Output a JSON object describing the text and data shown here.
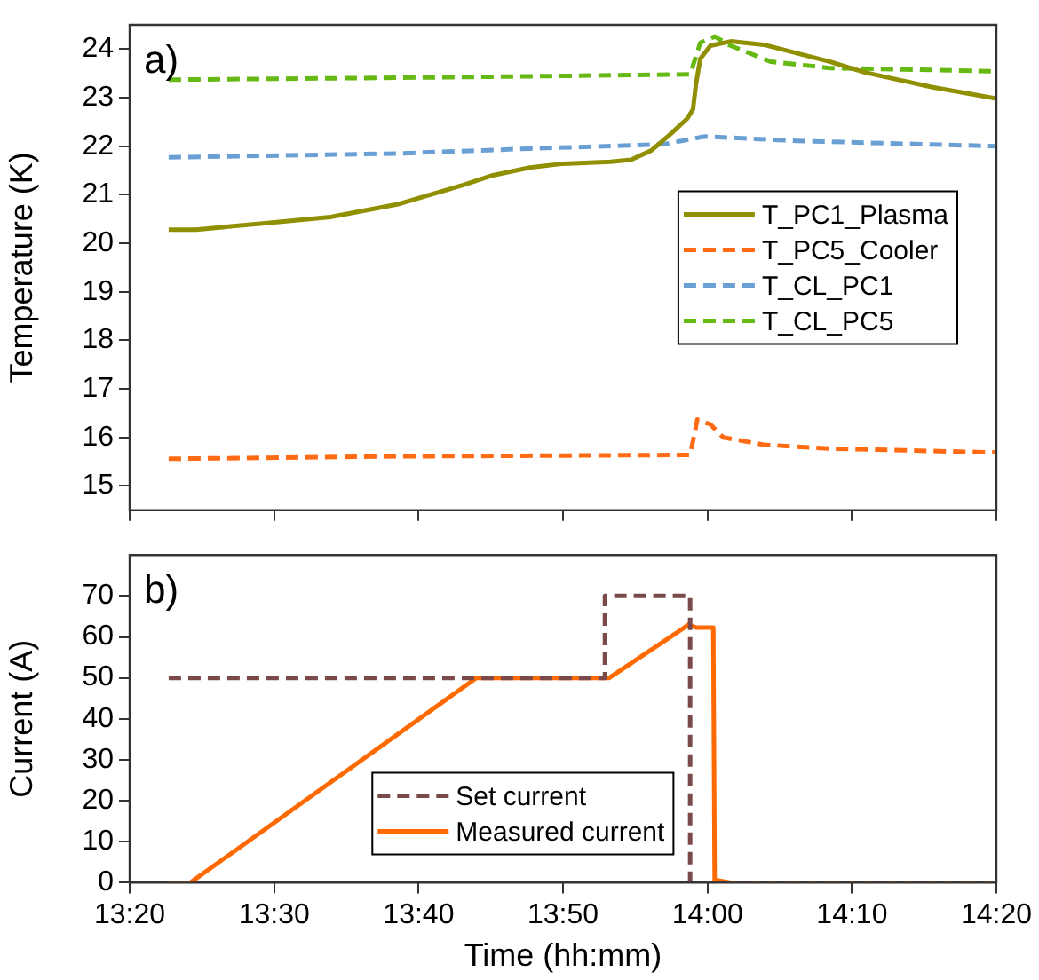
{
  "chart_data": [
    {
      "type": "line",
      "ylabel": "Temperature (K)",
      "annotations": [
        "a)"
      ],
      "legend": "right",
      "grid": false,
      "marker": "none",
      "tick_labels": "y",
      "xlim": [
        13.3333,
        14.3333
      ],
      "xticks": [
        {
          "value": 13.3333,
          "label": null
        },
        {
          "value": 13.5,
          "label": null
        },
        {
          "value": 13.6667,
          "label": null
        },
        {
          "value": 13.8333,
          "label": null
        },
        {
          "value": 14,
          "label": null
        },
        {
          "value": 14.1667,
          "label": null
        },
        {
          "value": 14.3333,
          "label": null
        }
      ],
      "ylim": [
        14.5,
        24.5
      ],
      "yticks": [
        15,
        16,
        17,
        18,
        19,
        20,
        21,
        22,
        23,
        24
      ],
      "series": [
        {
          "name": "T_PC1_Plasma",
          "color": "#8f8f00",
          "line_style": "solid",
          "x": [
            13.3783,
            13.41,
            13.4867,
            13.565,
            13.6417,
            13.7183,
            13.75,
            13.795,
            13.8333,
            13.8883,
            13.9117,
            13.935,
            13.9567,
            13.9767,
            13.9833,
            13.9867,
            13.9917,
            14.0033,
            14.0267,
            14.065,
            14.1417,
            14.1817,
            14.2583,
            14.3333
          ],
          "values": [
            20.28,
            20.28,
            20.41,
            20.54,
            20.8,
            21.2,
            21.39,
            21.56,
            21.64,
            21.68,
            21.72,
            21.91,
            22.24,
            22.57,
            22.76,
            23.28,
            23.8,
            24.07,
            24.16,
            24.09,
            23.74,
            23.52,
            23.22,
            22.98
          ]
        },
        {
          "name": "T_PC5_Cooler",
          "color": "#ff6a13",
          "line_style": "dashed",
          "x": [
            13.3783,
            13.6417,
            13.98,
            13.9883,
            14.0033,
            14.0183,
            14.065,
            14.1417,
            14.3333
          ],
          "values": [
            15.56,
            15.61,
            15.64,
            16.37,
            16.27,
            16.0,
            15.85,
            15.77,
            15.69
          ]
        },
        {
          "name": "T_CL_PC1",
          "color": "#6a9fd4",
          "line_style": "dashed",
          "x": [
            13.3783,
            13.6417,
            13.795,
            13.95,
            13.9967,
            14.1033,
            14.3333
          ],
          "values": [
            21.77,
            21.85,
            21.95,
            22.04,
            22.2,
            22.11,
            22.0
          ]
        },
        {
          "name": "T_CL_PC5",
          "color": "#66b812",
          "line_style": "dashed",
          "x": [
            13.3783,
            13.6417,
            13.795,
            13.98,
            13.9917,
            14.0083,
            14.0267,
            14.0733,
            14.1417,
            14.2583,
            14.3333
          ],
          "values": [
            23.37,
            23.41,
            23.44,
            23.48,
            24.13,
            24.26,
            24.07,
            23.74,
            23.61,
            23.57,
            23.54
          ]
        }
      ]
    },
    {
      "type": "line",
      "xlabel": "Time (hh:mm)",
      "ylabel": "Current (A)",
      "annotations": [
        "b)"
      ],
      "legend": "bottom",
      "grid": false,
      "marker": "none",
      "xlim": [
        13.3333,
        14.3333
      ],
      "xticks": [
        {
          "value": 13.3333,
          "label": "13:20"
        },
        {
          "value": 13.5,
          "label": "13:30"
        },
        {
          "value": 13.6667,
          "label": "13:40"
        },
        {
          "value": 13.8333,
          "label": "13:50"
        },
        {
          "value": 14,
          "label": "14:00"
        },
        {
          "value": 14.1667,
          "label": "14:10"
        },
        {
          "value": 14.3333,
          "label": "14:20"
        }
      ],
      "ylim": [
        0,
        80
      ],
      "yticks": [
        0,
        10,
        20,
        30,
        40,
        50,
        60,
        70
      ],
      "series": [
        {
          "name": "Set current",
          "color": "#7a4a4a",
          "line_style": "dashed",
          "x": [
            13.3783,
            13.8817,
            13.8817,
            13.98,
            13.98,
            14.3333
          ],
          "values": [
            50,
            50,
            70,
            70,
            0,
            0
          ]
        },
        {
          "name": "Measured current",
          "color": "#ff6a00",
          "line_style": "solid",
          "x": [
            13.3783,
            13.4033,
            13.7333,
            13.8867,
            13.9783,
            13.9867,
            14.0067,
            14.0083,
            14.0267,
            14.3333
          ],
          "values": [
            0,
            0,
            50,
            50,
            63,
            62.3,
            62.3,
            0.7,
            0,
            0
          ]
        }
      ]
    }
  ]
}
